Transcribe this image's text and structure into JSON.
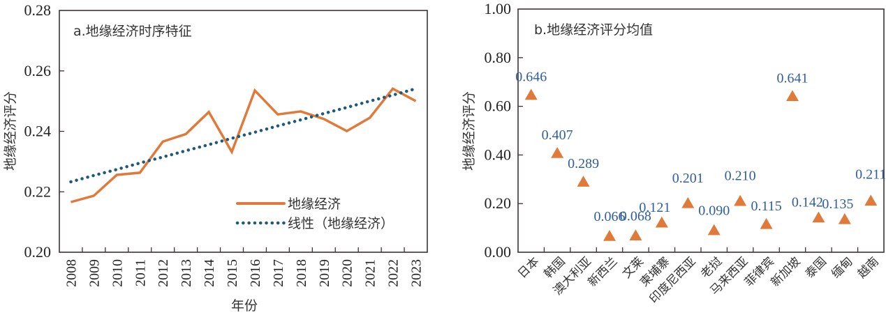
{
  "colors": {
    "series": "#E07A3A",
    "trend": "#1F5A7A",
    "marker": "#E07A3A",
    "data_label": "#2F5F9A",
    "axis": "#3A3333"
  },
  "chart_data": [
    {
      "type": "line",
      "title": "a.地缘经济时序特征",
      "xlabel": "年份",
      "ylabel": "地缘经济评分",
      "ylim": [
        0.2,
        0.28
      ],
      "yticks": [
        "0.20",
        "0.22",
        "0.24",
        "0.26",
        "0.28"
      ],
      "ytick_values": [
        0.2,
        0.22,
        0.24,
        0.26,
        0.28
      ],
      "categories": [
        "2008",
        "2009",
        "2010",
        "2011",
        "2012",
        "2013",
        "2014",
        "2015",
        "2016",
        "2017",
        "2018",
        "2019",
        "2020",
        "2021",
        "2022",
        "2023"
      ],
      "series": [
        {
          "name": "地缘经济",
          "style": "solid",
          "values": [
            0.2166,
            0.2187,
            0.2256,
            0.2263,
            0.2366,
            0.2391,
            0.2464,
            0.2332,
            0.2535,
            0.2456,
            0.2466,
            0.2441,
            0.2401,
            0.2445,
            0.2541,
            0.25
          ]
        },
        {
          "name": "线性（地缘经济）",
          "style": "dotted",
          "values": [
            0.2233,
            0.2254,
            0.2274,
            0.2295,
            0.2315,
            0.2336,
            0.2356,
            0.2377,
            0.2397,
            0.2418,
            0.2438,
            0.2459,
            0.2479,
            0.25,
            0.252,
            0.2541
          ]
        }
      ],
      "legend": {
        "placement": "bottom-right",
        "entries": [
          "地缘经济",
          "线性（地缘经济）"
        ]
      },
      "grid": false
    },
    {
      "type": "scatter",
      "title": "b.地缘经济评分均值",
      "xlabel": "",
      "ylabel": "地缘经济评分",
      "ylim": [
        0.0,
        1.0
      ],
      "yticks": [
        "0.00",
        "0.20",
        "0.40",
        "0.60",
        "0.80",
        "1.00"
      ],
      "ytick_values": [
        0.0,
        0.2,
        0.4,
        0.6,
        0.8,
        1.0
      ],
      "marker": "triangle",
      "categories": [
        "日本",
        "韩国",
        "澳大利亚",
        "新西兰",
        "文莱",
        "柬埔寨",
        "印度尼西亚",
        "老挝",
        "马来西亚",
        "菲律宾",
        "新加坡",
        "泰国",
        "缅甸",
        "越南"
      ],
      "values": [
        0.646,
        0.407,
        0.289,
        0.066,
        0.068,
        0.121,
        0.201,
        0.09,
        0.21,
        0.115,
        0.641,
        0.142,
        0.135,
        0.211
      ],
      "data_labels": [
        "0.646",
        "0.407",
        "0.289",
        "0.066",
        "0.068",
        "0.121",
        "0.201",
        "0.090",
        "0.210",
        "0.115",
        "0.641",
        "0.142",
        "0.135",
        "0.211"
      ],
      "grid": false
    }
  ]
}
